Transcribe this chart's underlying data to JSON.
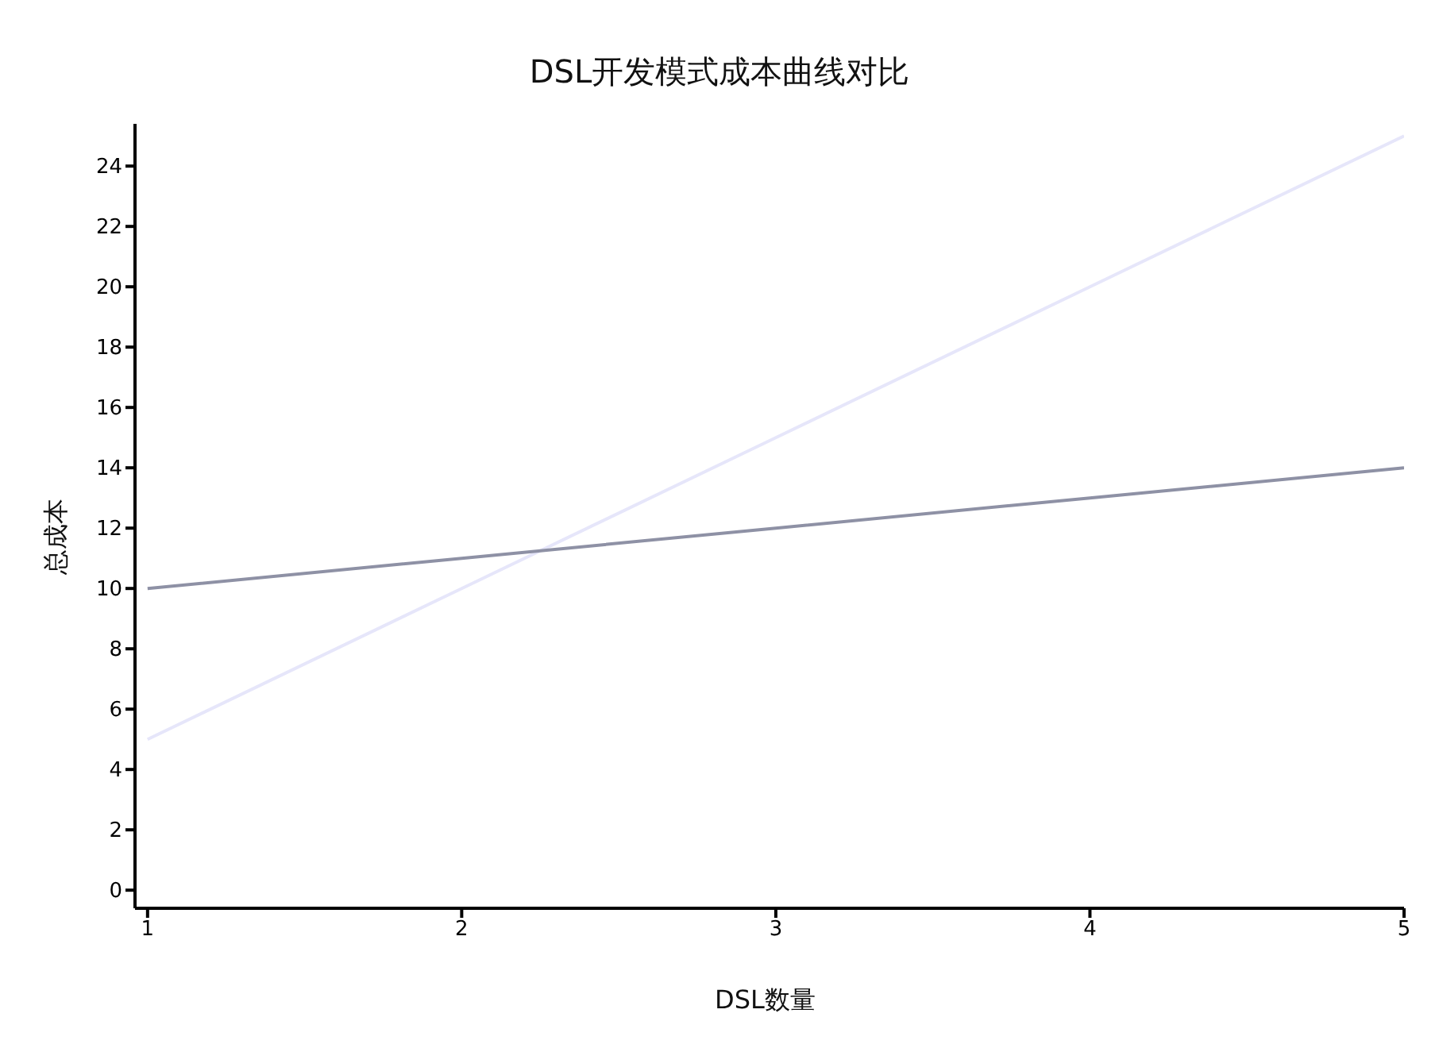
{
  "chart_data": {
    "type": "line",
    "title": "DSL开发模式成本曲线对比",
    "xlabel": "DSL数量",
    "ylabel": "总成本",
    "x": [
      1,
      2,
      3,
      4,
      5
    ],
    "series": [
      {
        "color": "#e6e6fa",
        "values": [
          5,
          10,
          15,
          20,
          25
        ]
      },
      {
        "color": "#8e91a5",
        "values": [
          10,
          11,
          12,
          13,
          14
        ]
      }
    ],
    "xlim": [
      0.96,
      5
    ],
    "xticks": [
      1,
      2,
      3,
      4,
      5
    ],
    "ylim": [
      -0.6,
      25.4
    ],
    "yticks": [
      0,
      2,
      4,
      6,
      8,
      10,
      12,
      14,
      16,
      18,
      20,
      22,
      24
    ],
    "grid": false,
    "legend": false,
    "marker": "none",
    "line_style": "solid"
  }
}
